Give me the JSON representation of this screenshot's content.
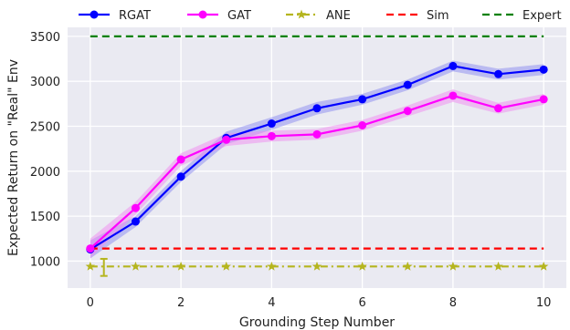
{
  "chart_data": {
    "type": "line",
    "xlabel": "Grounding Step Number",
    "ylabel": "Expected Return on \"Real\" Env",
    "xlim": [
      -0.5,
      10.5
    ],
    "ylim": [
      700,
      3600
    ],
    "x_ticks": [
      0,
      2,
      4,
      6,
      8,
      10
    ],
    "y_ticks": [
      1000,
      1500,
      2000,
      2500,
      3000,
      3500
    ],
    "grid": true,
    "legend_position": "top",
    "series": [
      {
        "name": "RGAT",
        "color": "#0000ff",
        "band_color": "#8a8af0",
        "marker": "circle",
        "linestyle": "solid",
        "x": [
          0,
          1,
          2,
          3,
          4,
          5,
          6,
          7,
          8,
          9,
          10
        ],
        "y": [
          1130,
          1440,
          1940,
          2370,
          2530,
          2700,
          2800,
          2960,
          3170,
          3080,
          3130
        ],
        "band": [
          100,
          60,
          60,
          70,
          70,
          70,
          60,
          60,
          60,
          60,
          60
        ]
      },
      {
        "name": "GAT",
        "color": "#ff00ff",
        "band_color": "#f08af0",
        "marker": "circle",
        "linestyle": "solid",
        "x": [
          0,
          1,
          2,
          3,
          4,
          5,
          6,
          7,
          8,
          9,
          10
        ],
        "y": [
          1140,
          1590,
          2130,
          2350,
          2390,
          2410,
          2510,
          2670,
          2840,
          2700,
          2800
        ],
        "band": [
          110,
          70,
          70,
          70,
          60,
          60,
          60,
          60,
          70,
          60,
          60
        ]
      },
      {
        "name": "ANE",
        "color": "#b5b51e",
        "marker": "star",
        "linestyle": "dashdot",
        "x": [
          0,
          1,
          2,
          3,
          4,
          5,
          6,
          7,
          8,
          9,
          10
        ],
        "y": [
          940,
          940,
          940,
          940,
          940,
          940,
          940,
          940,
          940,
          940,
          940
        ],
        "errorbar": {
          "x": 0.3,
          "y": 930,
          "err": 95
        }
      },
      {
        "name": "Sim",
        "color": "#ff0000",
        "linestyle": "dashed",
        "x": [
          0,
          10
        ],
        "y": [
          1140,
          1140
        ]
      },
      {
        "name": "Expert",
        "color": "#008000",
        "linestyle": "dashed",
        "x": [
          0,
          10
        ],
        "y": [
          3500,
          3500
        ]
      }
    ]
  }
}
